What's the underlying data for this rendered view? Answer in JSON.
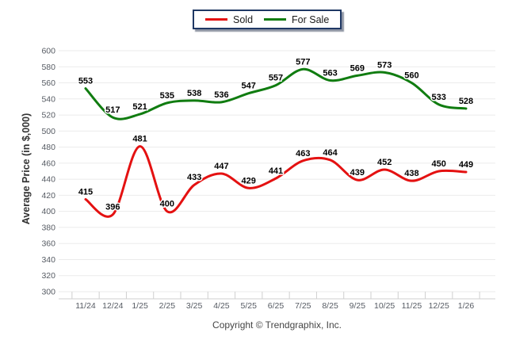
{
  "chart_data": {
    "type": "line",
    "categories": [
      "11/24",
      "12/24",
      "1/25",
      "2/25",
      "3/25",
      "4/25",
      "5/25",
      "6/25",
      "7/25",
      "8/25",
      "9/25",
      "10/25",
      "11/25",
      "12/25",
      "1/26"
    ],
    "series": [
      {
        "name": "Sold",
        "color": "#e41111",
        "values": [
          415,
          396,
          481,
          400,
          433,
          447,
          429,
          441,
          463,
          464,
          439,
          452,
          438,
          450,
          449
        ]
      },
      {
        "name": "For Sale",
        "color": "#107c10",
        "values": [
          553,
          517,
          521,
          535,
          538,
          536,
          547,
          557,
          577,
          563,
          569,
          573,
          560,
          533,
          528
        ]
      }
    ],
    "title": "",
    "xlabel": "",
    "ylabel": "Average Price (in $,000)",
    "ylim": [
      300,
      600
    ],
    "ytick_step": 20,
    "grid": "horizontal",
    "legend_position": "top-center",
    "data_labels": true
  },
  "legend": {
    "sold_label": "Sold",
    "for_sale_label": "For Sale"
  },
  "footer": {
    "copyright": "Copyright © Trendgraphix, Inc."
  },
  "colors": {
    "sold_line": "#e41111",
    "for_sale_line": "#107c10",
    "gridline": "#ebebeb",
    "axis_line": "#cfcfcf",
    "tick_label": "#565b63",
    "data_label": "#000000",
    "legend_border": "#1f3864",
    "background": "#ffffff"
  }
}
